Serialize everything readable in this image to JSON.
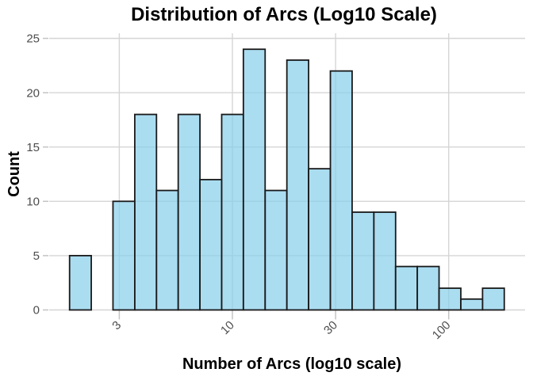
{
  "figure": {
    "title": "Distribution of Arcs (Log10 Scale)",
    "x_axis_title": "Number of Arcs (log10 scale)",
    "y_axis_title": "Count"
  },
  "chart_data": {
    "type": "bar",
    "subtype": "histogram",
    "title": "Distribution of Arcs (Log10 Scale)",
    "xlabel": "Number of Arcs (log10 scale)",
    "ylabel": "Count",
    "x_scale": "log10",
    "x_tick_labels": [
      "3",
      "10",
      "30",
      "100"
    ],
    "x_tick_values": [
      3,
      10,
      30,
      100
    ],
    "y_tick_values": [
      0,
      5,
      10,
      15,
      20,
      25
    ],
    "ylim": [
      0,
      25
    ],
    "xlim_log10": [
      0.155,
      2.355
    ],
    "bin_width_log10": 0.1005,
    "bin_edges": [
      1.767,
      2.226,
      2.805,
      3.537,
      4.457,
      5.617,
      7.079,
      8.922,
      11.24,
      14.17,
      17.86,
      22.51,
      28.38,
      35.77,
      45.08,
      56.83,
      71.61,
      90.26,
      113.8,
      143.4,
      180.7
    ],
    "counts": [
      5,
      0,
      10,
      18,
      11,
      18,
      12,
      18,
      24,
      11,
      23,
      13,
      22,
      9,
      9,
      4,
      4,
      2,
      1,
      2
    ],
    "total_count": 216,
    "grid": true,
    "legend": false,
    "colors": {
      "background": "#FFFFFF",
      "bar_fill": "#87CEEB",
      "bar_fill_opacity": 0.7,
      "bar_stroke": "#1A1A1A",
      "gridline": "#D5D5D5",
      "tick_mark": "#C4C4C4",
      "tick_label": "#4D4D4D",
      "title": "#000000"
    }
  }
}
